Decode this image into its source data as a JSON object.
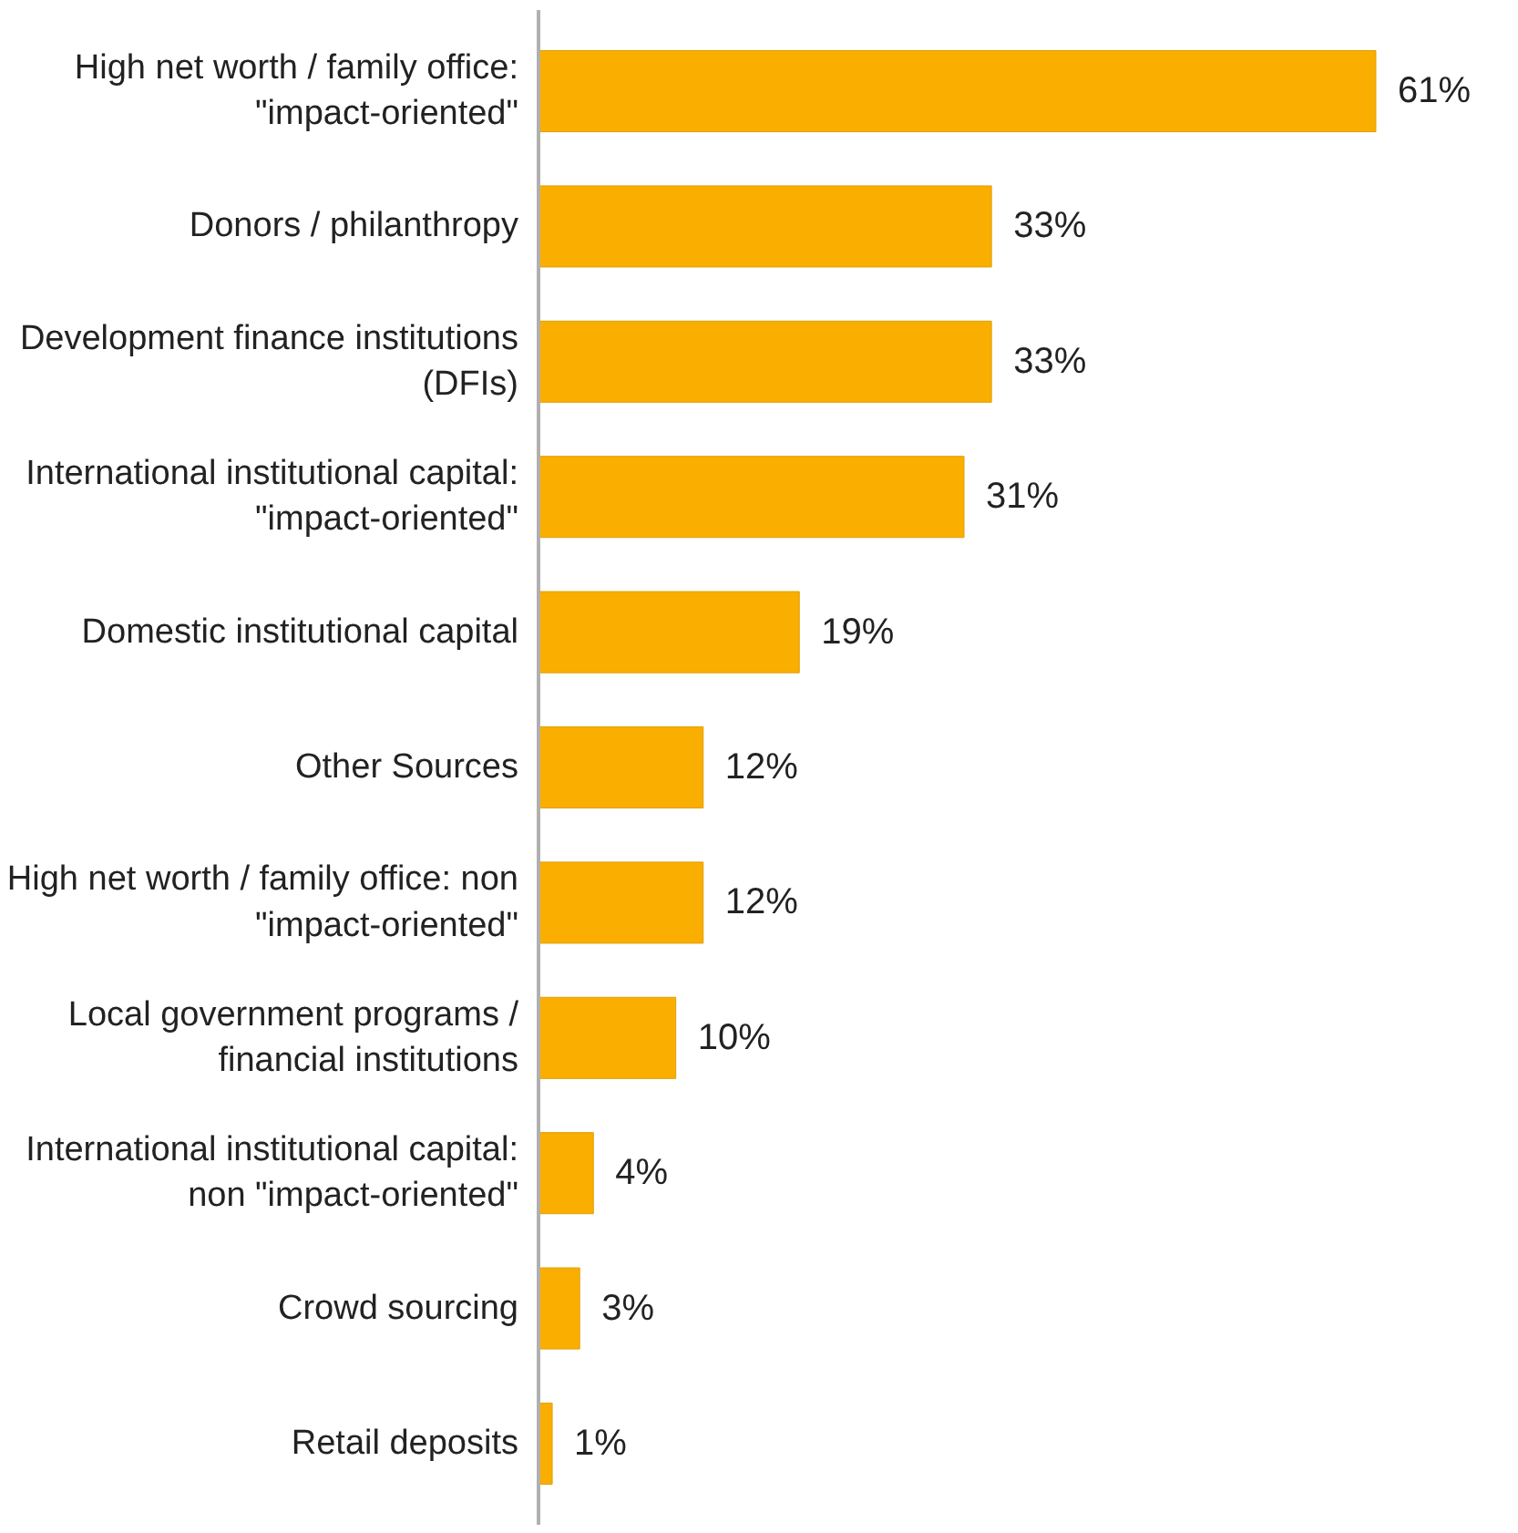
{
  "chart_data": {
    "type": "bar",
    "orientation": "horizontal",
    "data_labels": true,
    "grid": false,
    "categories": [
      "High net worth / family office:\n\"impact-oriented\"",
      "Donors / philanthropy",
      "Development finance institutions\n(DFIs)",
      "International institutional capital:\n\"impact-oriented\"",
      "Domestic institutional capital",
      "Other Sources",
      "High net worth / family office: non\n\"impact-oriented\"",
      "Local government programs /\nfinancial institutions",
      "International institutional capital:\nnon \"impact-oriented\"",
      "Crowd sourcing",
      "Retail deposits"
    ],
    "values": [
      61,
      33,
      33,
      31,
      19,
      12,
      12,
      10,
      4,
      3,
      1
    ],
    "value_labels": [
      "61%",
      "33%",
      "33%",
      "31%",
      "19%",
      "12%",
      "12%",
      "10%",
      "4%",
      "3%",
      "1%"
    ],
    "color": "#f9ae00"
  }
}
